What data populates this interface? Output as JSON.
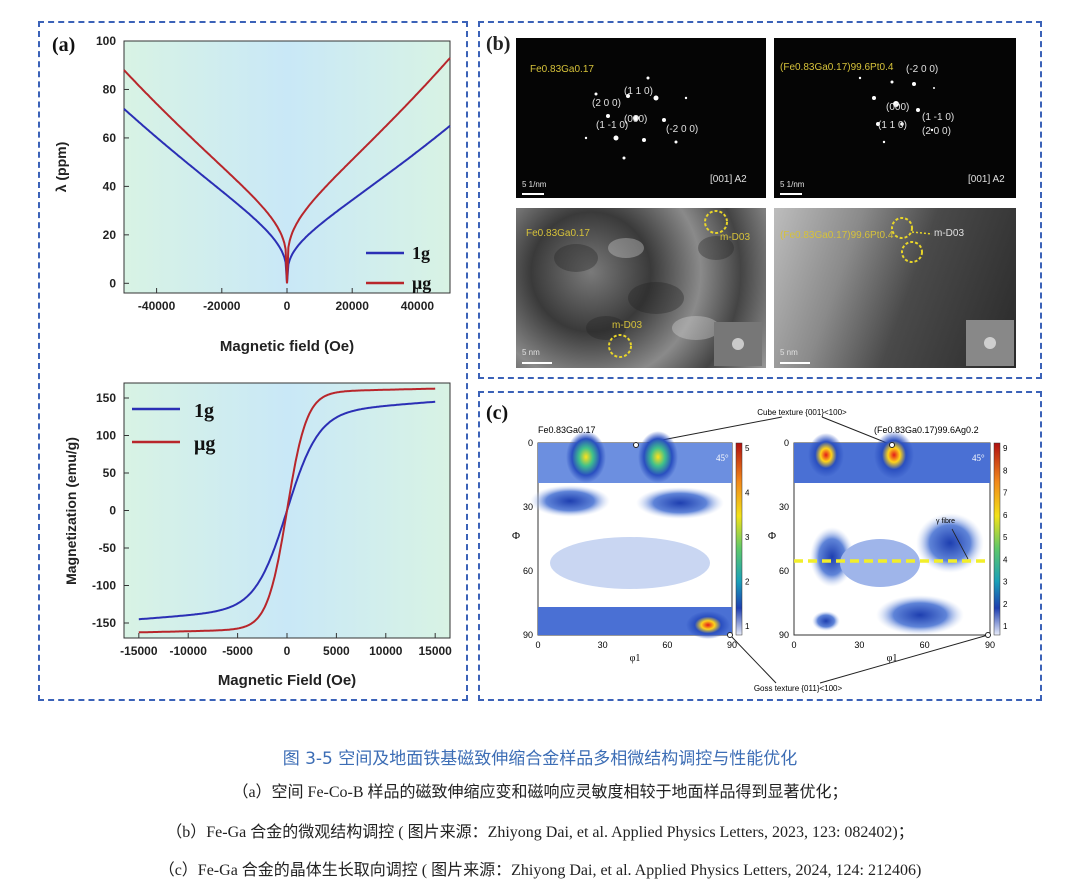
{
  "panel_a": {
    "label": "(a)",
    "top": {
      "ylabel": "λ (ppm)",
      "xlabel": "Magnetic field (Oe)",
      "xticks": [
        "-40000",
        "-20000",
        "0",
        "20000",
        "40000"
      ],
      "yticks": [
        "0",
        "20",
        "40",
        "60",
        "80",
        "100"
      ],
      "legend": [
        "1g",
        "μg"
      ]
    },
    "bottom": {
      "ylabel": "Magnetization (emu/g)",
      "xlabel": "Magnetic Field (Oe)",
      "xticks": [
        "-15000",
        "-10000",
        "-5000",
        "0",
        "5000",
        "10000",
        "15000"
      ],
      "yticks": [
        "-150",
        "-100",
        "-50",
        "0",
        "50",
        "100",
        "150"
      ],
      "legend": [
        "1g",
        "μg"
      ]
    }
  },
  "panel_b": {
    "label": "(b)",
    "tl": {
      "sample": "Fe0.83Ga0.17",
      "spots": [
        "(1 1 0)",
        "(2 0 0)",
        "(000)",
        "(1 -1 0)",
        "(-2 0 0)"
      ],
      "zone": "[001] A2",
      "scale": "5 1/nm"
    },
    "tr": {
      "sample": "(Fe0.83Ga0.17)99.6Pt0.4",
      "spots": [
        "(-2 0 0)",
        "(000)",
        "(1 -1 0)",
        "(1 1 0)",
        "(2 0 0)"
      ],
      "zone": "[001] A2",
      "scale": "5 1/nm"
    },
    "bl": {
      "sample": "Fe0.83Ga0.17",
      "phase_a": "m-D03",
      "phase_b": "m-D03",
      "scale": "5 nm"
    },
    "br": {
      "sample": "(Fe0.83Ga0.17)99.6Pt0.4",
      "phase": "m-D03",
      "scale": "5 nm"
    }
  },
  "panel_c": {
    "label": "(c)",
    "left_title": "Fe0.83Ga0.17",
    "right_title": "(Fe0.83Ga0.17)99.6Ag0.2",
    "cube": "Cube texture {001}<100>",
    "goss": "Goss texture {011}<100>",
    "gamma": "γ fibre",
    "angle": "45°",
    "phi_label": "Φ",
    "phi1_label": "φ1",
    "ticks": [
      "0",
      "30",
      "60",
      "90"
    ],
    "cbar_left": [
      "5",
      "4",
      "3",
      "2",
      "1"
    ],
    "cbar_right": [
      "9",
      "8",
      "7",
      "6",
      "5",
      "4",
      "3",
      "2",
      "1"
    ]
  },
  "caption": {
    "title": "图 3-5 空间及地面铁基磁致伸缩合金样品多相微结构调控与性能优化",
    "line_a": "（a）空间 Fe-Co-B 样品的磁致伸缩应变和磁响应灵敏度相较于地面样品得到显著优化；",
    "line_b": "（b）Fe-Ga 合金的微观结构调控 ( 图片来源：Zhiyong Dai, et al. Applied Physics Letters, 2023, 123: 082402)；",
    "line_c": "（c）Fe-Ga 合金的晶体生长取向调控 ( 图片来源：Zhiyong Dai, et al. Applied Physics Letters, 2024, 124: 212406)"
  },
  "colors": {
    "blue_series": "#2b2fb5",
    "red_series": "#b8262b",
    "frame": "#3b62b8",
    "caption_title": "#3c6db5"
  }
}
